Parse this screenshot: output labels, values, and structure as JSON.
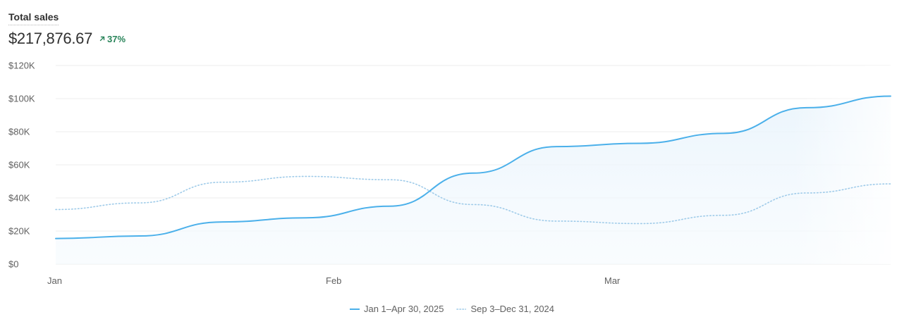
{
  "header": {
    "title": "Total sales",
    "value": "$217,876.67",
    "change": "37%",
    "change_color": "#29845a"
  },
  "colors": {
    "current": "#4bb0ea",
    "previous": "#9fcbe9",
    "grid": "#ececec",
    "text": "#616161"
  },
  "chart_data": {
    "type": "line",
    "title": "Total sales",
    "x_ticks": [
      "Jan",
      "Feb",
      "Mar"
    ],
    "y_ticks": [
      "$0",
      "$20K",
      "$40K",
      "$60K",
      "$80K",
      "$100K",
      "$120K"
    ],
    "ylim": [
      0,
      120000
    ],
    "grid": true,
    "legend_position": "bottom",
    "x": [
      0,
      0.1,
      0.2,
      0.3,
      0.4,
      0.5,
      0.6,
      0.7,
      0.8,
      0.9,
      1.0
    ],
    "series": [
      {
        "name": "Jan 1–Apr 30, 2025",
        "style": "solid",
        "values": [
          15500,
          17000,
          25500,
          28000,
          35000,
          55000,
          71000,
          73000,
          79000,
          94500,
          101500
        ]
      },
      {
        "name": "Sep 3–Dec 31, 2024",
        "style": "dotted",
        "values": [
          33000,
          37000,
          49500,
          53000,
          51000,
          36000,
          26000,
          24500,
          29500,
          43000,
          48500
        ]
      }
    ]
  }
}
